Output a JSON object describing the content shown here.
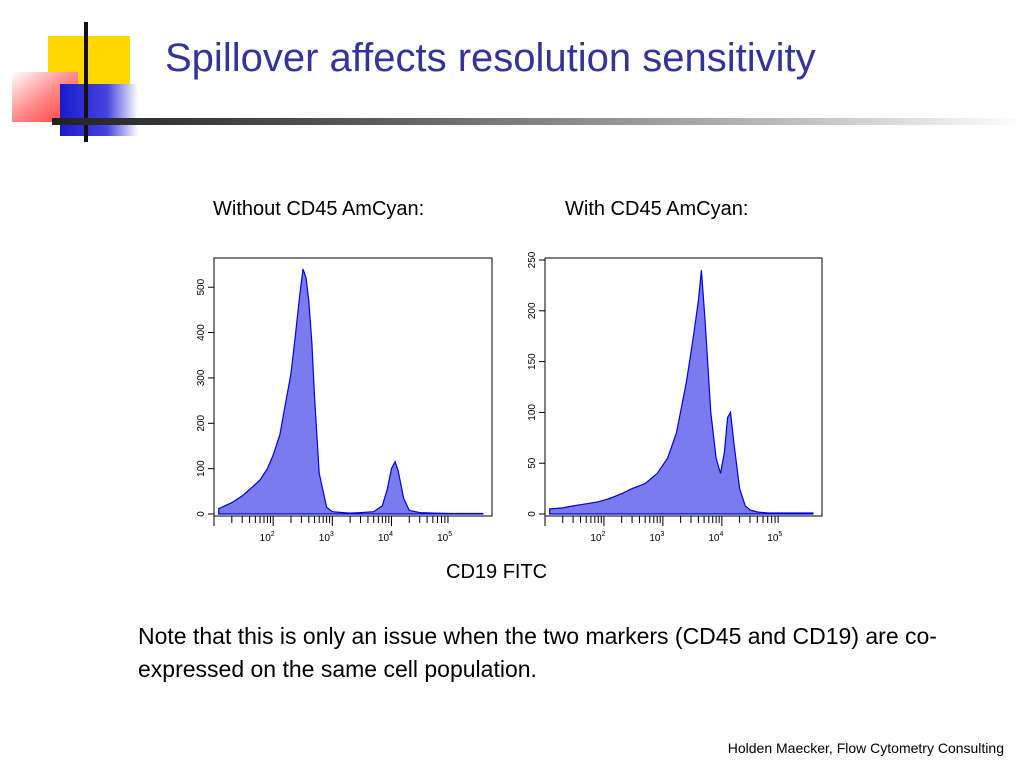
{
  "slide": {
    "title": "Spillover affects resolution sensitivity",
    "panel_left_label": "Without CD45 AmCyan:",
    "panel_right_label": "With CD45 AmCyan:",
    "x_axis_label": "CD19 FITC",
    "note": "Note that this is only an issue when the two markers (CD45 and CD19) are co-expressed on the same cell population.",
    "footer": "Holden Maecker, Flow Cytometry Consulting"
  },
  "colors": {
    "title": "#333399",
    "histogram_fill": "#7b7bf0",
    "histogram_line": "#0000dd",
    "logo_yellow": "#ffd700",
    "logo_red": "#ff5555",
    "logo_blue": "#2222cc"
  },
  "chart_data": [
    {
      "type": "area",
      "panel": "Without CD45 AmCyan:",
      "xlabel": "CD19 FITC",
      "x_scale": "log",
      "xlim": [
        10,
        500000
      ],
      "x_ticks": [
        "10^2",
        "10^3",
        "10^4",
        "10^5"
      ],
      "ylim": [
        0,
        560
      ],
      "y_ticks": [
        0,
        100,
        200,
        300,
        400,
        500
      ],
      "series": [
        {
          "x": [
            12,
            20,
            30,
            45,
            60,
            80,
            100,
            130,
            160,
            200,
            240,
            280,
            320,
            360,
            400,
            450,
            500,
            600,
            800,
            1000,
            1500,
            2000,
            3000,
            5000,
            7000,
            8500,
            10000,
            11500,
            13000,
            16000,
            20000,
            30000,
            50000,
            100000,
            200000,
            350000
          ],
          "y": [
            12,
            25,
            40,
            60,
            75,
            100,
            130,
            175,
            240,
            310,
            400,
            480,
            540,
            520,
            470,
            380,
            260,
            90,
            15,
            5,
            3,
            2,
            3,
            5,
            18,
            55,
            100,
            115,
            95,
            35,
            8,
            3,
            2,
            1,
            1,
            1
          ]
        }
      ]
    },
    {
      "type": "area",
      "panel": "With CD45 AmCyan:",
      "xlabel": "CD19 FITC",
      "x_scale": "log",
      "xlim": [
        10,
        500000
      ],
      "x_ticks": [
        "10^2",
        "10^3",
        "10^4",
        "10^5"
      ],
      "ylim": [
        0,
        250
      ],
      "y_ticks": [
        0,
        50,
        100,
        150,
        200,
        250
      ],
      "series": [
        {
          "x": [
            12,
            20,
            30,
            50,
            80,
            120,
            200,
            300,
            500,
            800,
            1200,
            1700,
            2500,
            3200,
            4000,
            4500,
            5200,
            6500,
            8000,
            9500,
            11000,
            12500,
            14000,
            16000,
            20000,
            25000,
            30000,
            40000,
            60000,
            100000,
            200000,
            350000
          ],
          "y": [
            5,
            6,
            8,
            10,
            12,
            15,
            20,
            25,
            30,
            40,
            55,
            80,
            130,
            170,
            210,
            240,
            190,
            100,
            55,
            40,
            60,
            95,
            100,
            70,
            25,
            8,
            4,
            2,
            1,
            1,
            1,
            1
          ]
        }
      ]
    }
  ]
}
